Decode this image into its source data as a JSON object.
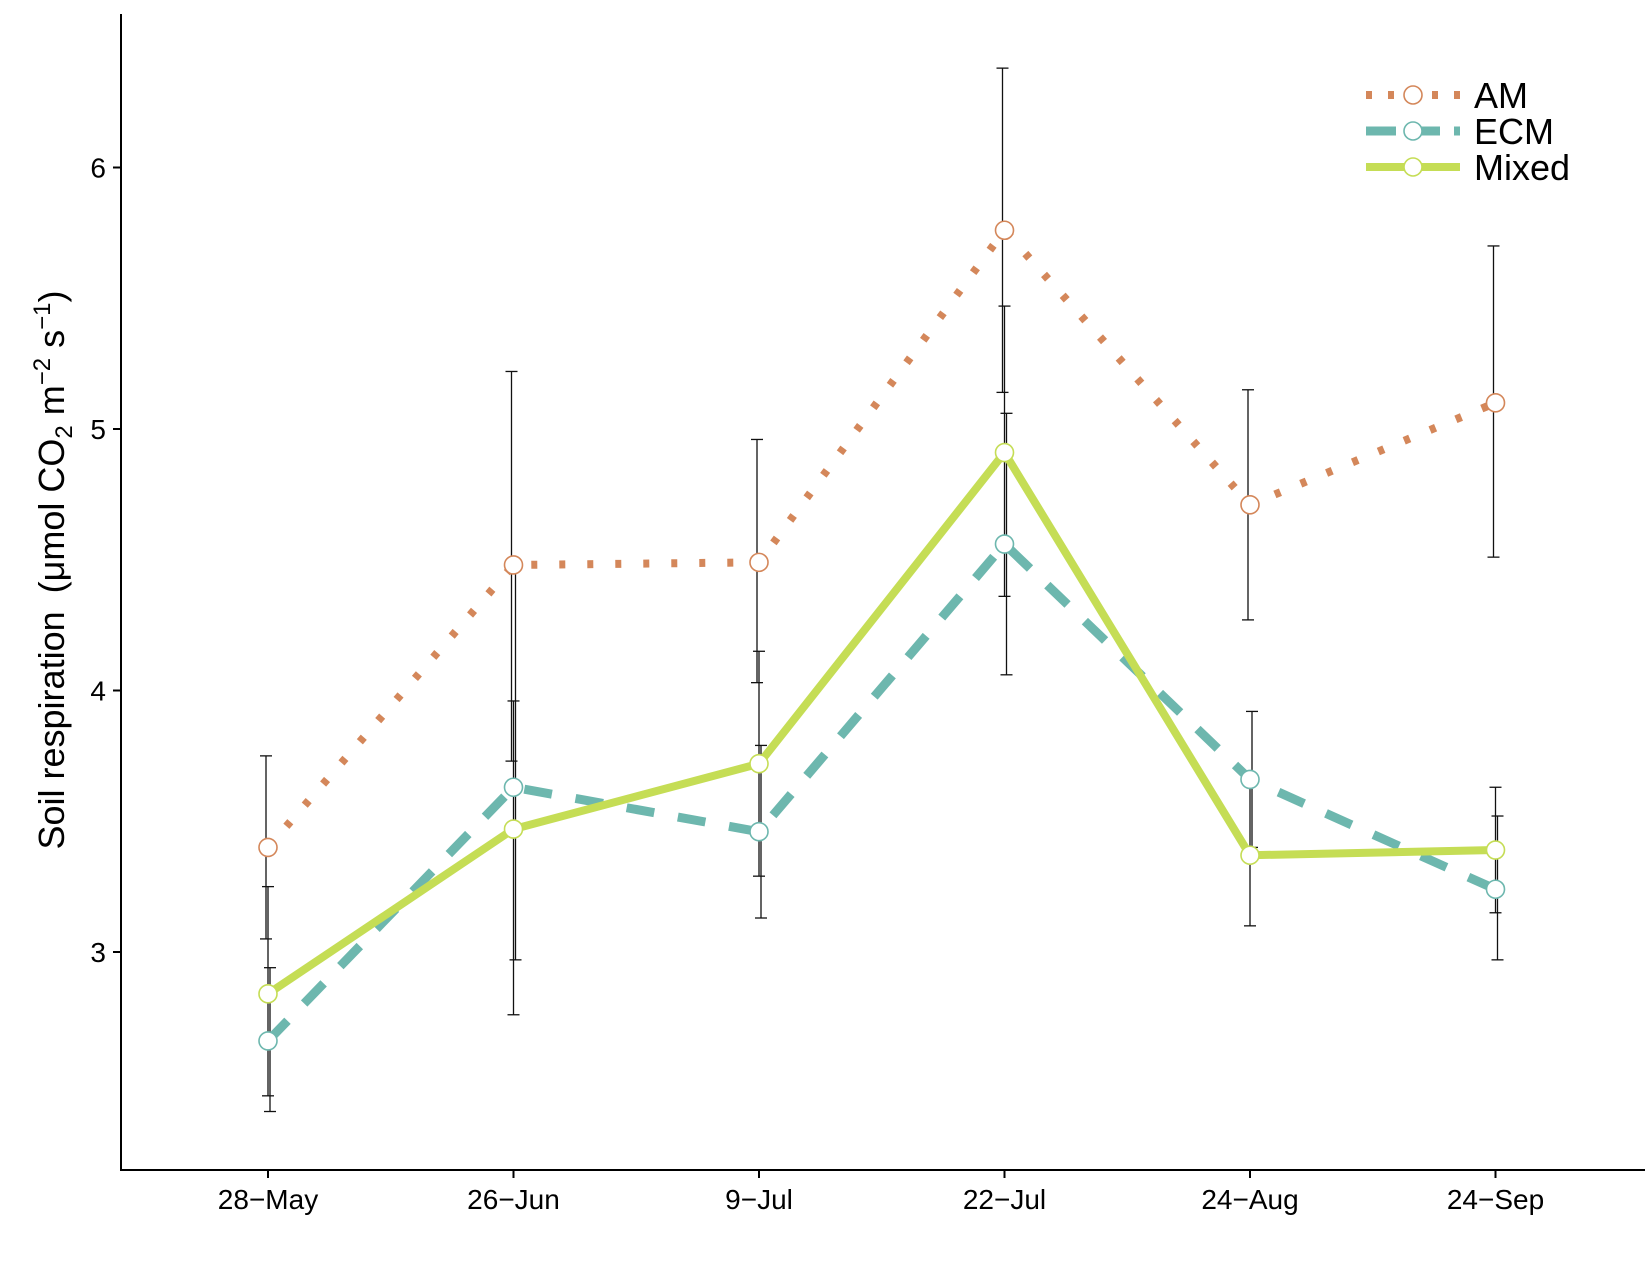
{
  "chart_data": {
    "type": "line",
    "title": "",
    "xlabel": "",
    "ylabel": "Soil respiration",
    "ylabel_unit": "(μmol CO",
    "ylabel_unit_sub": "2",
    "ylabel_unit_mid": " m",
    "ylabel_unit_sup1": "−2",
    "ylabel_unit_mid2": " s",
    "ylabel_unit_sup2": "−1",
    "ylabel_unit_end": ")",
    "categories": [
      "28−May",
      "26−Jun",
      "9−Jul",
      "22−Jul",
      "24−Aug",
      "24−Sep"
    ],
    "yticks": [
      3,
      4,
      5,
      6
    ],
    "ylim": [
      2.18,
      6.6
    ],
    "grid": false,
    "legend_position": "top-right",
    "error_bars": true,
    "series": [
      {
        "name": "AM",
        "style": "dotted",
        "color": "#d4875a",
        "values": [
          3.4,
          4.48,
          4.49,
          5.76,
          4.71,
          5.1
        ],
        "err_low": [
          3.05,
          3.73,
          4.03,
          5.14,
          4.27,
          4.51
        ],
        "err_high": [
          3.75,
          5.22,
          4.96,
          6.38,
          5.15,
          5.7
        ]
      },
      {
        "name": "ECM",
        "style": "dashed",
        "color": "#6db7ae",
        "values": [
          2.66,
          3.63,
          3.46,
          4.56,
          3.66,
          3.24
        ],
        "err_low": [
          2.39,
          2.97,
          3.13,
          4.06,
          3.4,
          2.97
        ],
        "err_high": [
          2.94,
          4.49,
          3.79,
          5.06,
          3.92,
          3.52
        ]
      },
      {
        "name": "Mixed",
        "style": "solid",
        "color": "#c5dd55",
        "values": [
          2.84,
          3.47,
          3.72,
          4.91,
          3.37,
          3.39
        ],
        "err_low": [
          2.45,
          2.76,
          3.29,
          4.36,
          3.1,
          3.15
        ],
        "err_high": [
          3.25,
          3.96,
          4.15,
          5.47,
          3.64,
          3.63
        ]
      }
    ]
  }
}
